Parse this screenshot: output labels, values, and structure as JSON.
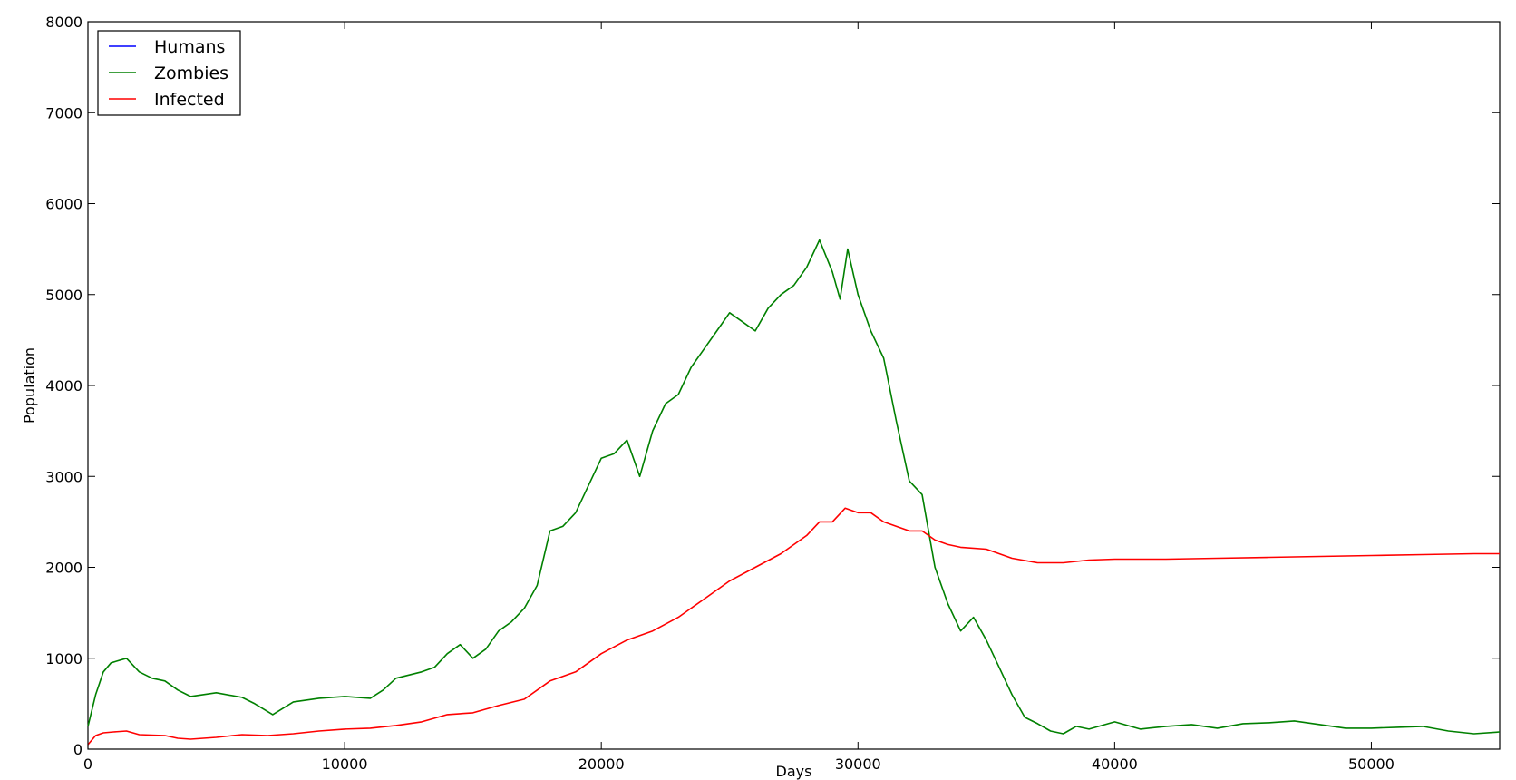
{
  "chart_data": {
    "type": "line",
    "title": "",
    "xlabel": "Days",
    "ylabel": "Population",
    "xlim": [
      0,
      55000
    ],
    "ylim": [
      0,
      8000
    ],
    "x_ticks": [
      0,
      10000,
      20000,
      30000,
      40000,
      50000
    ],
    "y_ticks": [
      0,
      1000,
      2000,
      3000,
      4000,
      5000,
      6000,
      7000,
      8000
    ],
    "grid": false,
    "legend_position": "top-left",
    "series": [
      {
        "name": "Humans",
        "color": "#0000ff",
        "x": [],
        "y": []
      },
      {
        "name": "Zombies",
        "color": "#008000",
        "x": [
          0,
          300,
          600,
          900,
          1500,
          2000,
          2500,
          3000,
          3500,
          4000,
          5000,
          6000,
          6500,
          7200,
          7600,
          8000,
          9000,
          10000,
          10500,
          11000,
          11500,
          12000,
          13000,
          13500,
          14000,
          14500,
          15000,
          15500,
          16000,
          16500,
          17000,
          17500,
          18000,
          18500,
          19000,
          19500,
          20000,
          20500,
          21000,
          21500,
          22000,
          22500,
          23000,
          23500,
          24000,
          24500,
          25000,
          25500,
          26000,
          26500,
          27000,
          27500,
          28000,
          28500,
          29000,
          29300,
          29600,
          30000,
          30500,
          31000,
          31500,
          32000,
          32500,
          33000,
          33500,
          34000,
          34500,
          35000,
          35500,
          36000,
          36500,
          37000,
          37500,
          38000,
          38500,
          39000,
          40000,
          41000,
          42000,
          43000,
          44000,
          45000,
          46000,
          47000,
          48000,
          49000,
          50000,
          51000,
          52000,
          53000,
          54000,
          55000
        ],
        "y": [
          250,
          600,
          850,
          950,
          1000,
          850,
          780,
          750,
          650,
          580,
          620,
          570,
          500,
          380,
          450,
          520,
          560,
          580,
          570,
          560,
          650,
          780,
          850,
          900,
          1050,
          1150,
          1000,
          1100,
          1300,
          1400,
          1550,
          1800,
          2400,
          2450,
          2600,
          2900,
          3200,
          3250,
          3400,
          3000,
          3500,
          3800,
          3900,
          4200,
          4400,
          4600,
          4800,
          4700,
          4600,
          4850,
          5000,
          5100,
          5300,
          5600,
          5250,
          4950,
          5500,
          5000,
          4600,
          4300,
          3600,
          2950,
          2800,
          2000,
          1600,
          1300,
          1450,
          1200,
          900,
          600,
          350,
          280,
          200,
          170,
          250,
          220,
          300,
          220,
          250,
          270,
          230,
          280,
          290,
          310,
          270,
          230,
          230,
          240,
          250,
          200,
          170,
          190
        ]
      },
      {
        "name": "Infected",
        "color": "#ff0000",
        "x": [
          0,
          300,
          600,
          1000,
          1500,
          2000,
          3000,
          3500,
          4000,
          5000,
          6000,
          7000,
          8000,
          9000,
          10000,
          11000,
          12000,
          13000,
          14000,
          15000,
          16000,
          17000,
          18000,
          19000,
          20000,
          21000,
          22000,
          23000,
          24000,
          25000,
          26000,
          27000,
          28000,
          28500,
          29000,
          29500,
          30000,
          30500,
          31000,
          31500,
          32000,
          32500,
          33000,
          33500,
          34000,
          35000,
          36000,
          37000,
          38000,
          39000,
          40000,
          42000,
          44000,
          46000,
          48000,
          50000,
          52000,
          54000,
          55000
        ],
        "y": [
          50,
          150,
          180,
          190,
          200,
          160,
          150,
          120,
          110,
          130,
          160,
          150,
          170,
          200,
          220,
          230,
          260,
          300,
          380,
          400,
          480,
          550,
          750,
          850,
          1050,
          1200,
          1300,
          1450,
          1650,
          1850,
          2000,
          2150,
          2350,
          2500,
          2500,
          2650,
          2600,
          2600,
          2500,
          2450,
          2400,
          2400,
          2300,
          2250,
          2220,
          2200,
          2100,
          2050,
          2050,
          2080,
          2090,
          2090,
          2100,
          2110,
          2120,
          2130,
          2140,
          2150,
          2150
        ]
      }
    ]
  }
}
